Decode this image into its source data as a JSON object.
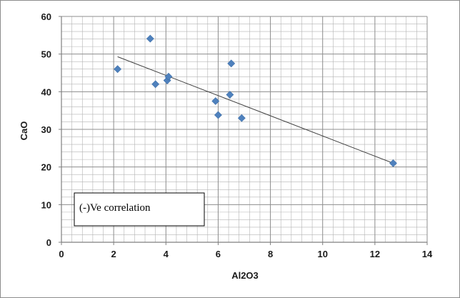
{
  "chart_data": {
    "type": "scatter",
    "xlabel": "Al2O3",
    "ylabel": "CaO",
    "xlim": [
      0,
      14
    ],
    "ylim": [
      0,
      60
    ],
    "x_major_ticks": [
      0,
      2,
      4,
      6,
      8,
      10,
      12,
      14
    ],
    "y_major_ticks": [
      0,
      10,
      20,
      30,
      40,
      50,
      60
    ],
    "x_minor_step": 0.4,
    "y_minor_step": 2,
    "grid": true,
    "marker": "diamond",
    "colors": {
      "marker": "#4f81bd",
      "trendline": "#404040",
      "grid": "#b3b3b3",
      "axis": "#7f7f7f"
    },
    "points": [
      {
        "x": 2.15,
        "y": 46.0
      },
      {
        "x": 3.4,
        "y": 54.1
      },
      {
        "x": 3.6,
        "y": 42.0
      },
      {
        "x": 4.05,
        "y": 43.0
      },
      {
        "x": 4.1,
        "y": 44.0
      },
      {
        "x": 5.9,
        "y": 37.5
      },
      {
        "x": 6.0,
        "y": 33.8
      },
      {
        "x": 6.45,
        "y": 39.2
      },
      {
        "x": 6.5,
        "y": 47.5
      },
      {
        "x": 6.9,
        "y": 33.0
      },
      {
        "x": 12.7,
        "y": 21.0
      }
    ],
    "trendline": {
      "x1": 2.15,
      "y1": 49.3,
      "x2": 12.7,
      "y2": 21.0
    },
    "annotation": "(-)Ve correlation"
  }
}
